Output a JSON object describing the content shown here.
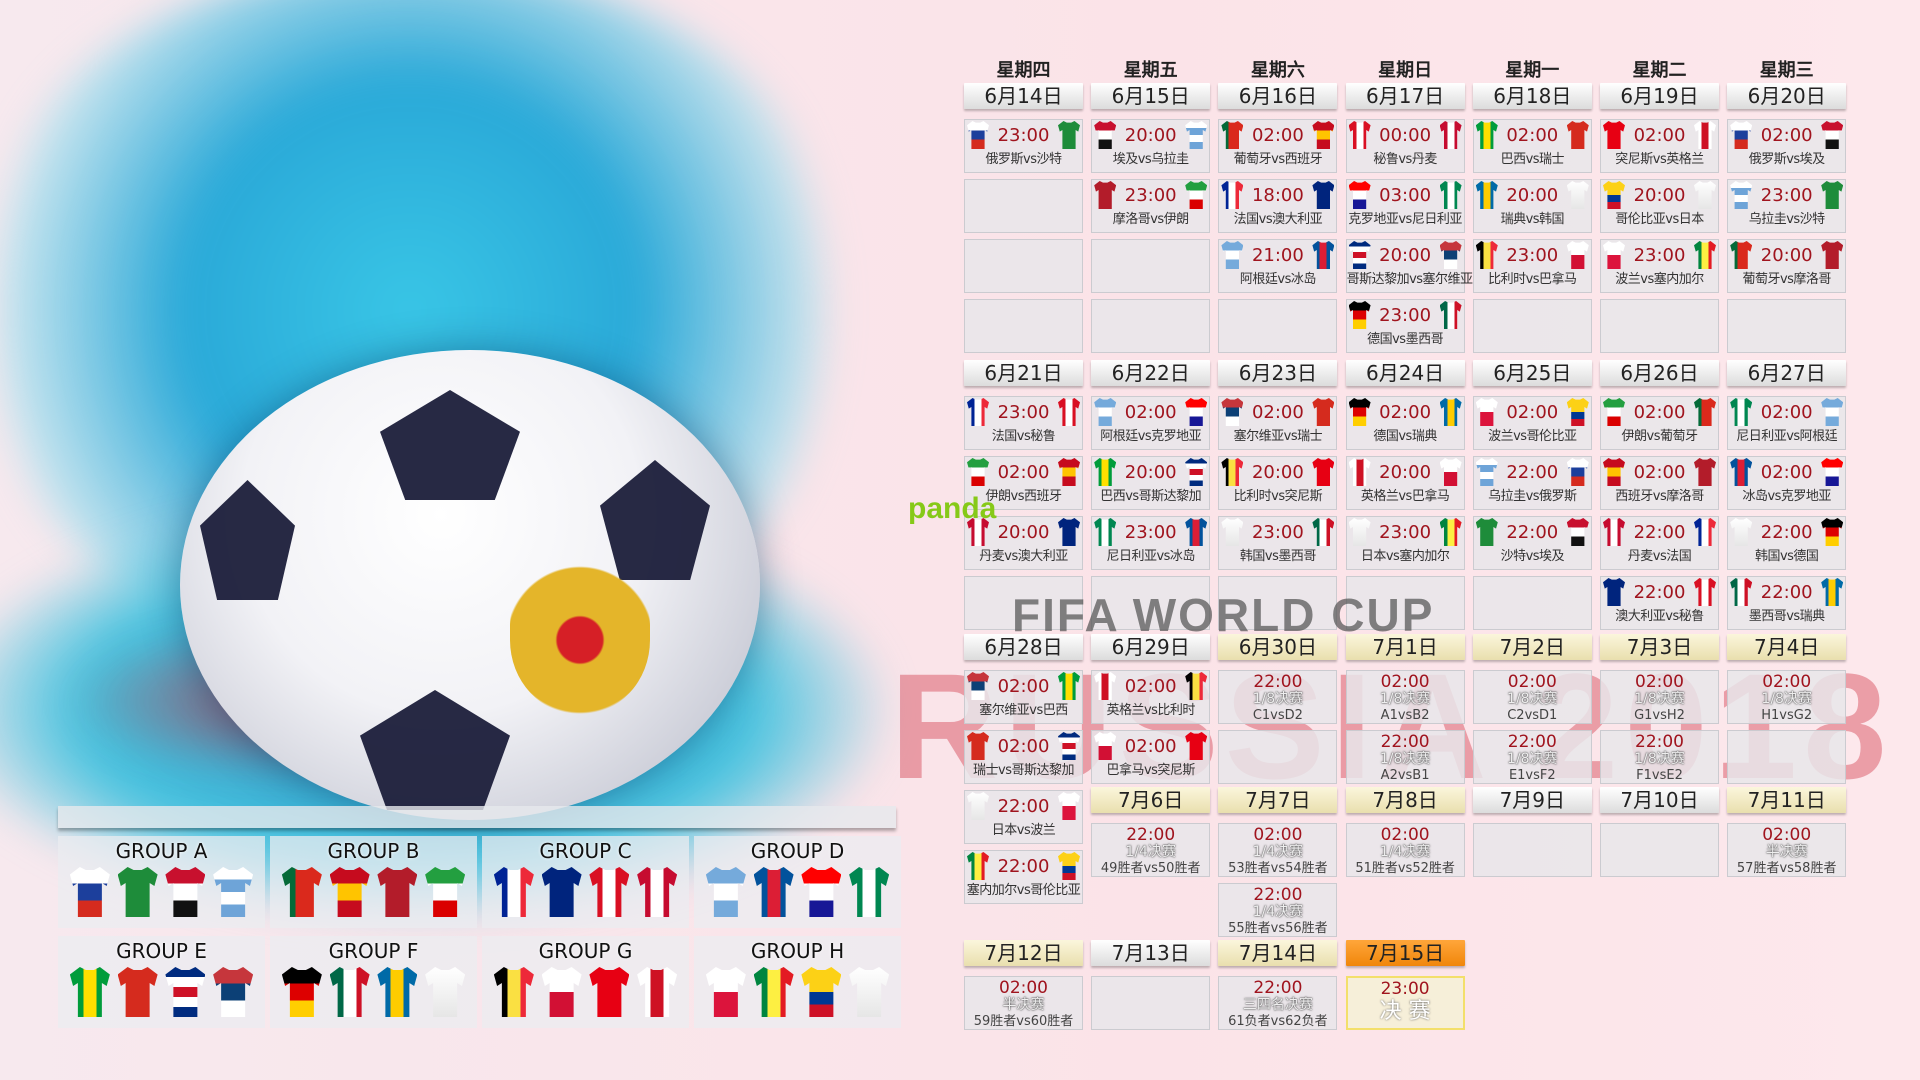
{
  "watermarks": {
    "fifa": "FIFA WORLD CUP",
    "russia": "RUSSIA 2018",
    "panda": "panda"
  },
  "weekdays": [
    "星期四",
    "星期五",
    "星期六",
    "星期日",
    "星期一",
    "星期二",
    "星期三"
  ],
  "colors": {
    "time": "#a0141e",
    "final_header": "#f0860b",
    "knockout_header": "#e9dfae"
  },
  "team_colors": {
    "俄罗斯": {
      "d": "h",
      "c": [
        "#ffffff",
        "#1c3f9c",
        "#d52b1e"
      ]
    },
    "沙特": {
      "d": "h",
      "c": [
        "#1e8c3a"
      ]
    },
    "埃及": {
      "d": "h",
      "c": [
        "#c8102e",
        "#ffffff",
        "#111111"
      ]
    },
    "乌拉圭": {
      "d": "h",
      "c": [
        "#ffffff",
        "#6ea4d8",
        "#ffffff",
        "#6ea4d8"
      ]
    },
    "摩洛哥": {
      "d": "h",
      "c": [
        "#b31c2a"
      ]
    },
    "伊朗": {
      "d": "h",
      "c": [
        "#239f40",
        "#ffffff",
        "#da0000"
      ]
    },
    "葡萄牙": {
      "d": "v",
      "c": [
        "#046a38",
        "#da291c",
        "#da291c"
      ]
    },
    "西班牙": {
      "d": "h",
      "c": [
        "#c60b1e",
        "#ffc400",
        "#c60b1e"
      ]
    },
    "法国": {
      "d": "v",
      "c": [
        "#002395",
        "#ffffff",
        "#ed2939"
      ]
    },
    "澳大利亚": {
      "d": "h",
      "c": [
        "#00247d"
      ]
    },
    "阿根廷": {
      "d": "h",
      "c": [
        "#75aadb",
        "#ffffff",
        "#75aadb"
      ]
    },
    "冰岛": {
      "d": "v",
      "c": [
        "#02529c",
        "#dc1e35",
        "#02529c"
      ]
    },
    "秘鲁": {
      "d": "v",
      "c": [
        "#d91023",
        "#ffffff",
        "#d91023"
      ]
    },
    "丹麦": {
      "d": "v",
      "c": [
        "#c60c30",
        "#ffffff",
        "#c60c30"
      ]
    },
    "克罗地亚": {
      "d": "h",
      "c": [
        "#ff0000",
        "#ffffff",
        "#171796"
      ]
    },
    "尼日利亚": {
      "d": "v",
      "c": [
        "#008751",
        "#ffffff",
        "#008751"
      ]
    },
    "哥斯达黎加": {
      "d": "h",
      "c": [
        "#002b7f",
        "#ffffff",
        "#ce1126",
        "#ffffff",
        "#002b7f"
      ]
    },
    "塞尔维亚": {
      "d": "h",
      "c": [
        "#c6363c",
        "#0c4076",
        "#ffffff"
      ]
    },
    "德国": {
      "d": "h",
      "c": [
        "#000000",
        "#dd0000",
        "#ffce00"
      ]
    },
    "墨西哥": {
      "d": "v",
      "c": [
        "#006847",
        "#ffffff",
        "#ce1126"
      ]
    },
    "巴西": {
      "d": "v",
      "c": [
        "#009c3b",
        "#ffdf00",
        "#009c3b"
      ]
    },
    "瑞士": {
      "d": "h",
      "c": [
        "#d52b1e"
      ]
    },
    "瑞典": {
      "d": "v",
      "c": [
        "#006aa7",
        "#fecc00",
        "#006aa7"
      ]
    },
    "韩国": {
      "d": "h",
      "c": [
        "#ffffff"
      ]
    },
    "比利时": {
      "d": "v",
      "c": [
        "#000000",
        "#fae042",
        "#ed2939"
      ]
    },
    "巴拿马": {
      "d": "h",
      "c": [
        "#ffffff",
        "#d21034"
      ]
    },
    "突尼斯": {
      "d": "h",
      "c": [
        "#e70013"
      ]
    },
    "英格兰": {
      "d": "v",
      "c": [
        "#ffffff",
        "#ce1124",
        "#ffffff"
      ]
    },
    "哥伦比亚": {
      "d": "h",
      "c": [
        "#fcd116",
        "#fcd116",
        "#003893",
        "#ce1126"
      ]
    },
    "日本": {
      "d": "h",
      "c": [
        "#ffffff"
      ]
    },
    "波兰": {
      "d": "h",
      "c": [
        "#ffffff",
        "#dc143c"
      ]
    },
    "塞内加尔": {
      "d": "v",
      "c": [
        "#00853f",
        "#fdef42",
        "#e31b23"
      ]
    }
  },
  "weeks": [
    {
      "days": [
        {
          "date": "6月14日",
          "matches": [
            {
              "time": "23:00",
              "home": "俄罗斯",
              "away": "沙特"
            }
          ]
        },
        {
          "date": "6月15日",
          "matches": [
            {
              "time": "20:00",
              "home": "埃及",
              "away": "乌拉圭"
            },
            {
              "time": "23:00",
              "home": "摩洛哥",
              "away": "伊朗"
            }
          ]
        },
        {
          "date": "6月16日",
          "matches": [
            {
              "time": "02:00",
              "home": "葡萄牙",
              "away": "西班牙"
            },
            {
              "time": "18:00",
              "home": "法国",
              "away": "澳大利亚"
            },
            {
              "time": "21:00",
              "home": "阿根廷",
              "away": "冰岛"
            }
          ]
        },
        {
          "date": "6月17日",
          "matches": [
            {
              "time": "00:00",
              "home": "秘鲁",
              "away": "丹麦"
            },
            {
              "time": "03:00",
              "home": "克罗地亚",
              "away": "尼日利亚"
            },
            {
              "time": "20:00",
              "home": "哥斯达黎加",
              "away": "塞尔维亚"
            },
            {
              "time": "23:00",
              "home": "德国",
              "away": "墨西哥"
            }
          ]
        },
        {
          "date": "6月18日",
          "matches": [
            {
              "time": "02:00",
              "home": "巴西",
              "away": "瑞士"
            },
            {
              "time": "20:00",
              "home": "瑞典",
              "away": "韩国"
            },
            {
              "time": "23:00",
              "home": "比利时",
              "away": "巴拿马"
            }
          ]
        },
        {
          "date": "6月19日",
          "matches": [
            {
              "time": "02:00",
              "home": "突尼斯",
              "away": "英格兰"
            },
            {
              "time": "20:00",
              "home": "哥伦比亚",
              "away": "日本"
            },
            {
              "time": "23:00",
              "home": "波兰",
              "away": "塞内加尔"
            }
          ]
        },
        {
          "date": "6月20日",
          "matches": [
            {
              "time": "02:00",
              "home": "俄罗斯",
              "away": "埃及"
            },
            {
              "time": "23:00",
              "home": "乌拉圭",
              "away": "沙特"
            },
            {
              "time": "20:00",
              "home": "葡萄牙",
              "away": "摩洛哥"
            }
          ]
        }
      ]
    },
    {
      "days": [
        {
          "date": "6月21日",
          "matches": [
            {
              "time": "23:00",
              "home": "法国",
              "away": "秘鲁"
            },
            {
              "time": "02:00",
              "home": "伊朗",
              "away": "西班牙"
            },
            {
              "time": "20:00",
              "home": "丹麦",
              "away": "澳大利亚"
            }
          ]
        },
        {
          "date": "6月22日",
          "matches": [
            {
              "time": "02:00",
              "home": "阿根廷",
              "away": "克罗地亚"
            },
            {
              "time": "20:00",
              "home": "巴西",
              "away": "哥斯达黎加"
            },
            {
              "time": "23:00",
              "home": "尼日利亚",
              "away": "冰岛"
            }
          ]
        },
        {
          "date": "6月23日",
          "matches": [
            {
              "time": "02:00",
              "home": "塞尔维亚",
              "away": "瑞士"
            },
            {
              "time": "20:00",
              "home": "比利时",
              "away": "突尼斯"
            },
            {
              "time": "23:00",
              "home": "韩国",
              "away": "墨西哥"
            }
          ]
        },
        {
          "date": "6月24日",
          "matches": [
            {
              "time": "02:00",
              "home": "德国",
              "away": "瑞典"
            },
            {
              "time": "20:00",
              "home": "英格兰",
              "away": "巴拿马"
            },
            {
              "time": "23:00",
              "home": "日本",
              "away": "塞内加尔"
            }
          ]
        },
        {
          "date": "6月25日",
          "matches": [
            {
              "time": "02:00",
              "home": "波兰",
              "away": "哥伦比亚"
            },
            {
              "time": "22:00",
              "home": "乌拉圭",
              "away": "俄罗斯"
            },
            {
              "time": "22:00",
              "home": "沙特",
              "away": "埃及"
            }
          ]
        },
        {
          "date": "6月26日",
          "matches": [
            {
              "time": "02:00",
              "home": "伊朗",
              "away": "葡萄牙"
            },
            {
              "time": "02:00",
              "home": "西班牙",
              "away": "摩洛哥"
            },
            {
              "time": "22:00",
              "home": "丹麦",
              "away": "法国"
            },
            {
              "time": "22:00",
              "home": "澳大利亚",
              "away": "秘鲁"
            }
          ]
        },
        {
          "date": "6月27日",
          "matches": [
            {
              "time": "02:00",
              "home": "尼日利亚",
              "away": "阿根廷"
            },
            {
              "time": "02:00",
              "home": "冰岛",
              "away": "克罗地亚"
            },
            {
              "time": "22:00",
              "home": "韩国",
              "away": "德国"
            },
            {
              "time": "22:00",
              "home": "墨西哥",
              "away": "瑞典"
            }
          ]
        }
      ]
    },
    {
      "days": [
        {
          "date": "6月28日",
          "matches": [
            {
              "time": "02:00",
              "home": "塞尔维亚",
              "away": "巴西"
            },
            {
              "time": "02:00",
              "home": "瑞士",
              "away": "哥斯达黎加"
            },
            {
              "time": "22:00",
              "home": "日本",
              "away": "波兰"
            },
            {
              "time": "22:00",
              "home": "塞内加尔",
              "away": "哥伦比亚"
            }
          ]
        },
        {
          "date": "6月29日",
          "matches": [
            {
              "time": "02:00",
              "home": "英格兰",
              "away": "比利时"
            },
            {
              "time": "02:00",
              "home": "巴拿马",
              "away": "突尼斯"
            }
          ]
        },
        {
          "date": "6月30日",
          "ko": true,
          "matches": [
            {
              "time": "22:00",
              "stage": "1/8决赛",
              "pair": "C1vsD2"
            }
          ]
        },
        {
          "date": "7月1日",
          "ko": true,
          "matches": [
            {
              "time": "02:00",
              "stage": "1/8决赛",
              "pair": "A1vsB2"
            },
            {
              "time": "22:00",
              "stage": "1/8决赛",
              "pair": "A2vsB1"
            }
          ]
        },
        {
          "date": "7月2日",
          "ko": true,
          "matches": [
            {
              "time": "02:00",
              "stage": "1/8决赛",
              "pair": "C2vsD1"
            },
            {
              "time": "22:00",
              "stage": "1/8决赛",
              "pair": "E1vsF2"
            }
          ]
        },
        {
          "date": "7月3日",
          "ko": true,
          "matches": [
            {
              "time": "02:00",
              "stage": "1/8决赛",
              "pair": "G1vsH2"
            },
            {
              "time": "22:00",
              "stage": "1/8决赛",
              "pair": "F1vsE2"
            }
          ]
        },
        {
          "date": "7月4日",
          "ko": true,
          "matches": [
            {
              "time": "02:00",
              "stage": "1/8决赛",
              "pair": "H1vsG2"
            }
          ]
        }
      ]
    },
    {
      "days": [
        null,
        {
          "date": "7月6日",
          "ko": true,
          "matches": [
            {
              "time": "22:00",
              "stage": "1/4决赛",
              "pair": "49胜者vs50胜者"
            }
          ]
        },
        {
          "date": "7月7日",
          "ko": true,
          "matches": [
            {
              "time": "02:00",
              "stage": "1/4决赛",
              "pair": "53胜者vs54胜者"
            },
            {
              "time": "22:00",
              "stage": "1/4决赛",
              "pair": "55胜者vs56胜者"
            }
          ]
        },
        {
          "date": "7月8日",
          "ko": true,
          "matches": [
            {
              "time": "02:00",
              "stage": "1/4决赛",
              "pair": "51胜者vs52胜者"
            }
          ]
        },
        {
          "date": "7月9日",
          "matches": []
        },
        {
          "date": "7月10日",
          "matches": []
        },
        {
          "date": "7月11日",
          "ko": true,
          "matches": [
            {
              "time": "02:00",
              "stage": "半决赛",
              "pair": "57胜者vs58胜者"
            }
          ]
        }
      ]
    },
    {
      "days": [
        {
          "date": "7月12日",
          "ko": true,
          "matches": [
            {
              "time": "02:00",
              "stage": "半决赛",
              "pair": "59胜者vs60胜者"
            }
          ]
        },
        {
          "date": "7月13日",
          "matches": []
        },
        {
          "date": "7月14日",
          "ko": true,
          "matches": [
            {
              "time": "22:00",
              "stage": "三四名决赛",
              "pair": "61负者vs62负者"
            }
          ]
        },
        {
          "date": "7月15日",
          "ko": true,
          "final": true,
          "matches": [
            {
              "time": "23:00",
              "stage": "决 赛"
            }
          ]
        }
      ]
    }
  ],
  "groups": [
    {
      "name": "GROUP A",
      "teams": [
        "俄罗斯",
        "沙特",
        "埃及",
        "乌拉圭"
      ]
    },
    {
      "name": "GROUP B",
      "teams": [
        "葡萄牙",
        "西班牙",
        "摩洛哥",
        "伊朗"
      ]
    },
    {
      "name": "GROUP C",
      "teams": [
        "法国",
        "澳大利亚",
        "秘鲁",
        "丹麦"
      ]
    },
    {
      "name": "GROUP D",
      "teams": [
        "阿根廷",
        "冰岛",
        "克罗地亚",
        "尼日利亚"
      ]
    },
    {
      "name": "GROUP E",
      "teams": [
        "巴西",
        "瑞士",
        "哥斯达黎加",
        "塞尔维亚"
      ]
    },
    {
      "name": "GROUP F",
      "teams": [
        "德国",
        "墨西哥",
        "瑞典",
        "韩国"
      ]
    },
    {
      "name": "GROUP G",
      "teams": [
        "比利时",
        "巴拿马",
        "突尼斯",
        "英格兰"
      ]
    },
    {
      "name": "GROUP H",
      "teams": [
        "波兰",
        "塞内加尔",
        "哥伦比亚",
        "日本"
      ]
    }
  ]
}
